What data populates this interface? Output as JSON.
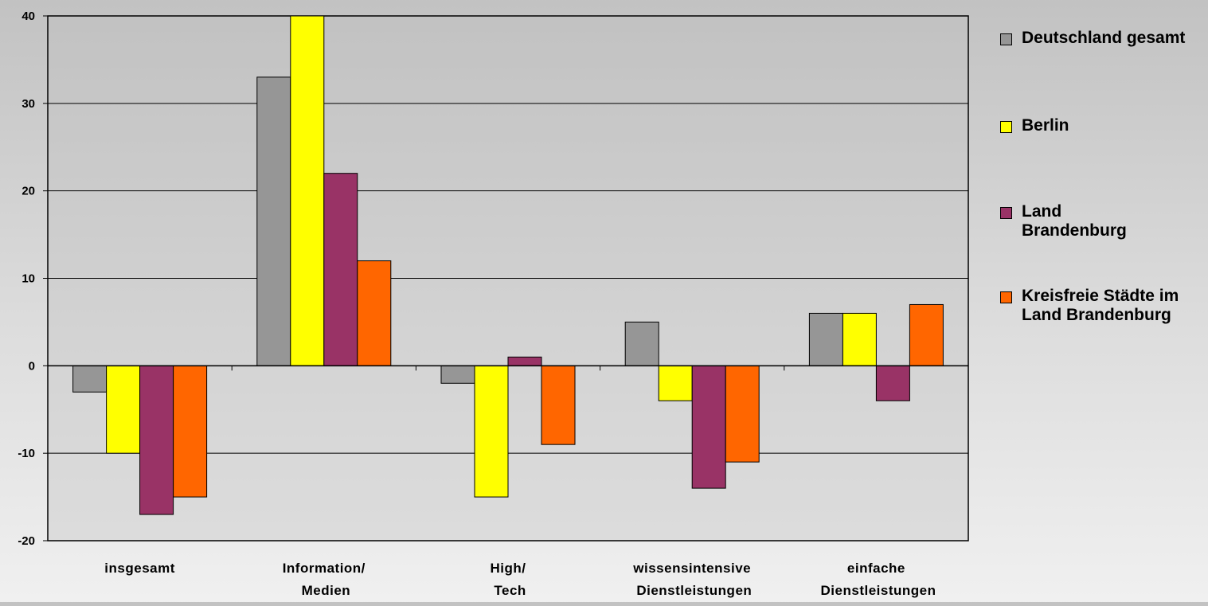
{
  "chart_data": {
    "type": "bar",
    "categories": [
      "insgesamt",
      "Information/ Medien",
      "High/ Tech",
      "wissensintensive Dienstleistungen",
      "einfache Dienstleistungen"
    ],
    "series": [
      {
        "name": "Deutschland gesamt",
        "color": "#969696",
        "values": [
          -3,
          33,
          -2,
          5,
          6
        ]
      },
      {
        "name": "Berlin",
        "color": "#ffff00",
        "values": [
          -10,
          40,
          -15,
          -4,
          6
        ]
      },
      {
        "name": "Land Brandenburg",
        "color": "#993366",
        "values": [
          -17,
          22,
          1,
          -14,
          -4
        ]
      },
      {
        "name": "Kreisfreie Städte im Land Brandenburg",
        "color": "#ff6600",
        "values": [
          -15,
          12,
          -9,
          -11,
          7
        ]
      }
    ],
    "yticks": [
      "-20",
      "-10",
      "0",
      "10",
      "20",
      "30",
      "40"
    ],
    "ylim": [
      -20,
      40
    ],
    "grid": true,
    "legend_position": "right"
  }
}
